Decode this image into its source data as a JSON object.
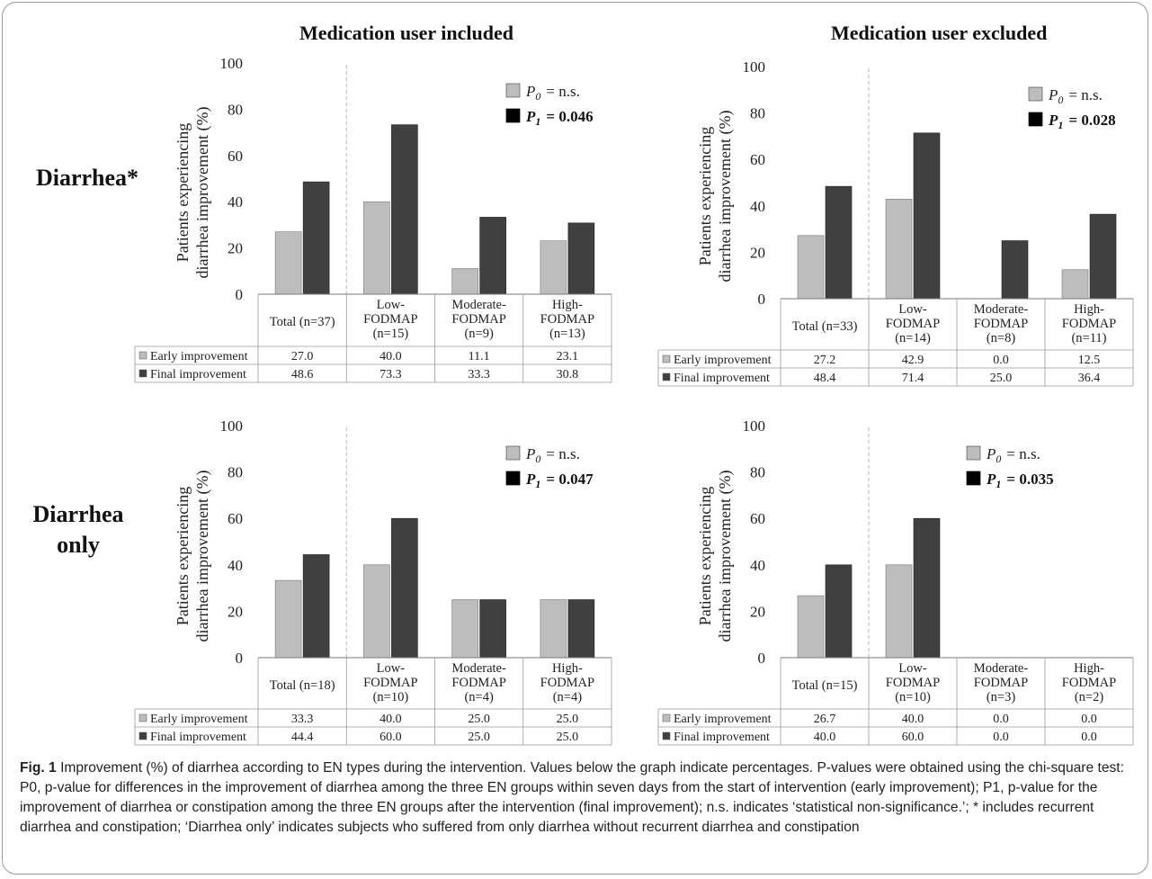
{
  "figure": {
    "col_titles": [
      "Medication user included",
      "Medication user excluded"
    ],
    "row_titles": [
      [
        "Diarrhea*"
      ],
      [
        "Diarrhea",
        "only"
      ]
    ],
    "caption_label": "Fig. 1",
    "caption_text": " Improvement (%) of diarrhea according to EN types during the intervention. Values below the graph indicate percentages. P-values were obtained using the chi-square test: P0, p-value for differences in the improvement of diarrhea among the three EN groups within seven days from the start of intervention (early improvement); P1, p-value for the improvement of diarrhea or constipation among the three EN groups after the intervention (final improvement); n.s. indicates ‘statistical non-significance.’; * includes recurrent diarrhea and constipation; ‘Diarrhea only’ indicates subjects who suffered from only diarrhea without recurrent diarrhea and constipation"
  },
  "colors": {
    "early": "#bdbdbd",
    "final": "#404040"
  },
  "chart_data": [
    {
      "type": "bar",
      "ylabel": [
        "Patients experiencing",
        "diarrhea improvement (%)"
      ],
      "ylim": [
        0,
        100
      ],
      "yticks": [
        "0",
        "20",
        "40",
        "60",
        "80",
        "100"
      ],
      "categories": [
        [
          "Total (n=37)"
        ],
        [
          "Low-",
          "FODMAP",
          "(n=15)"
        ],
        [
          "Moderate-",
          "FODMAP",
          "(n=9)"
        ],
        [
          "High-",
          "FODMAP",
          "(n=13)"
        ]
      ],
      "series": [
        {
          "name": "Early improvement",
          "values": [
            27.0,
            40.0,
            11.1,
            23.1
          ],
          "labels": [
            "27.0",
            "40.0",
            "11.1",
            "23.1"
          ]
        },
        {
          "name": "Final improvement",
          "values": [
            48.6,
            73.3,
            33.3,
            30.8
          ],
          "labels": [
            "48.6",
            "73.3",
            "33.3",
            "30.8"
          ]
        }
      ],
      "legend": {
        "placement": "top-right",
        "p0_label": "P",
        "p0_sub": "0",
        "p0_value": "=   n.s.",
        "p1_label": "P",
        "p1_sub": "1",
        "p1_value": "=  0.046"
      }
    },
    {
      "type": "bar",
      "ylabel": [
        "Patients experiencing",
        "diarrhea improvement (%)"
      ],
      "ylim": [
        0,
        100
      ],
      "yticks": [
        "0",
        "20",
        "40",
        "60",
        "80",
        "100"
      ],
      "categories": [
        [
          "Total (n=33)"
        ],
        [
          "Low-",
          "FODMAP",
          "(n=14)"
        ],
        [
          "Moderate-",
          "FODMAP",
          "(n=8)"
        ],
        [
          "High-",
          "FODMAP",
          "(n=11)"
        ]
      ],
      "series": [
        {
          "name": "Early improvement",
          "values": [
            27.2,
            42.9,
            0.0,
            12.5
          ],
          "labels": [
            "27.2",
            "42.9",
            "0.0",
            "12.5"
          ]
        },
        {
          "name": "Final improvement",
          "values": [
            48.4,
            71.4,
            25.0,
            36.4
          ],
          "labels": [
            "48.4",
            "71.4",
            "25.0",
            "36.4"
          ]
        }
      ],
      "legend": {
        "placement": "top-right",
        "p0_label": "P",
        "p0_sub": "0",
        "p0_value": "=   n.s.",
        "p1_label": "P",
        "p1_sub": "1",
        "p1_value": "=  0.028"
      }
    },
    {
      "type": "bar",
      "ylabel": [
        "Patients experiencing",
        "diarrhea improvement (%)"
      ],
      "ylim": [
        0,
        100
      ],
      "yticks": [
        "0",
        "20",
        "40",
        "60",
        "80",
        "100"
      ],
      "categories": [
        [
          "Total (n=18)"
        ],
        [
          "Low-",
          "FODMAP",
          "(n=10)"
        ],
        [
          "Moderate-",
          "FODMAP",
          "(n=4)"
        ],
        [
          "High-",
          "FODMAP",
          "(n=4)"
        ]
      ],
      "series": [
        {
          "name": "Early improvement",
          "values": [
            33.3,
            40.0,
            25.0,
            25.0
          ],
          "labels": [
            "33.3",
            "40.0",
            "25.0",
            "25.0"
          ]
        },
        {
          "name": "Final improvement",
          "values": [
            44.4,
            60.0,
            25.0,
            25.0
          ],
          "labels": [
            "44.4",
            "60.0",
            "25.0",
            "25.0"
          ]
        }
      ],
      "legend": {
        "placement": "top-right",
        "p0_label": "P",
        "p0_sub": "0",
        "p0_value": "=   n.s.",
        "p1_label": "P",
        "p1_sub": "1",
        "p1_value": "=  0.047"
      }
    },
    {
      "type": "bar",
      "ylabel": [
        "Patients experiencing",
        "diarrhea improvement (%)"
      ],
      "ylim": [
        0,
        100
      ],
      "yticks": [
        "0",
        "20",
        "40",
        "60",
        "80",
        "100"
      ],
      "categories": [
        [
          "Total (n=15)"
        ],
        [
          "Low-",
          "FODMAP",
          "(n=10)"
        ],
        [
          "Moderate-",
          "FODMAP",
          "(n=3)"
        ],
        [
          "High-",
          "FODMAP",
          "(n=2)"
        ]
      ],
      "series": [
        {
          "name": "Early improvement",
          "values": [
            26.7,
            40.0,
            0.0,
            0.0
          ],
          "labels": [
            "26.7",
            "40.0",
            "0.0",
            "0.0"
          ]
        },
        {
          "name": "Final improvement",
          "values": [
            40.0,
            60.0,
            0.0,
            0.0
          ],
          "labels": [
            "40.0",
            "60.0",
            "0.0",
            "0.0"
          ]
        }
      ],
      "legend": {
        "placement": "top-right",
        "p0_label": "P",
        "p0_sub": "0",
        "p0_value": "=   n.s.",
        "p1_label": "P",
        "p1_sub": "1",
        "p1_value": "=  0.035"
      }
    }
  ]
}
